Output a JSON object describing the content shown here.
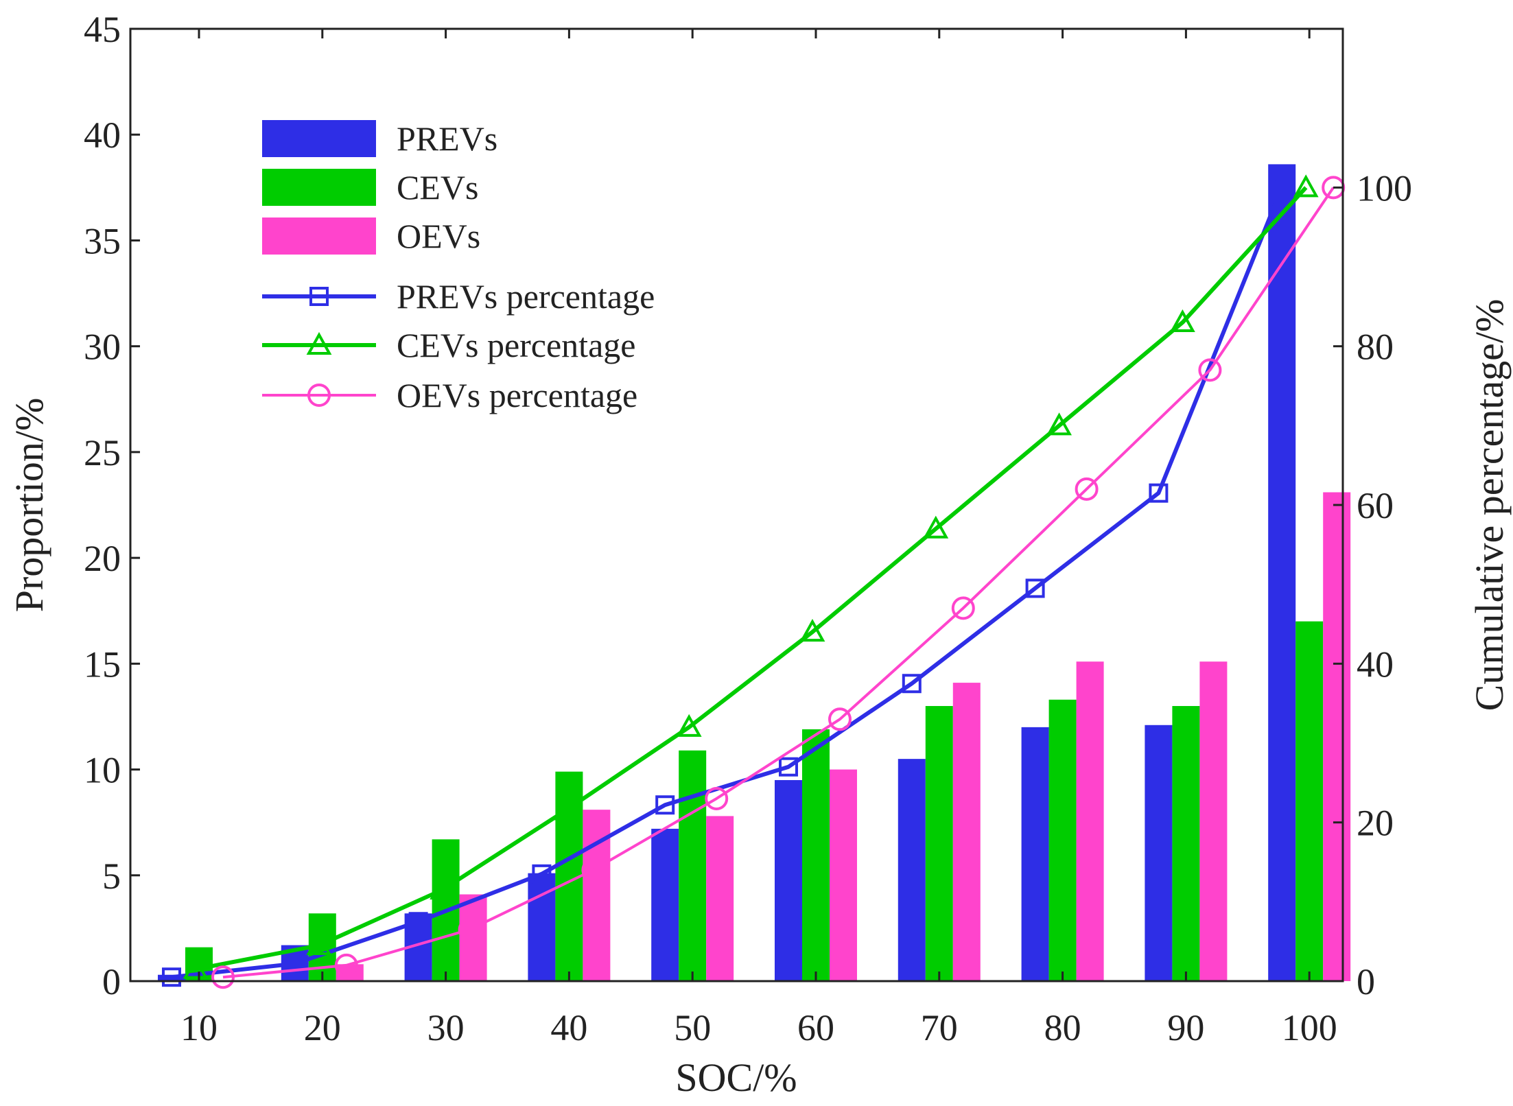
{
  "chart_data": {
    "type": "bar",
    "title": "",
    "xlabel": "SOC/%",
    "ylabel": "Proportion/%",
    "y2label": "Cumulative percentage/%",
    "categories": [
      "10",
      "20",
      "30",
      "40",
      "50",
      "60",
      "70",
      "80",
      "90",
      "100"
    ],
    "ylim": [
      0,
      45
    ],
    "y2lim": [
      0,
      120
    ],
    "yticks": [
      "0",
      "5",
      "10",
      "15",
      "20",
      "25",
      "30",
      "35",
      "40",
      "45"
    ],
    "y2ticks": [
      "0",
      "20",
      "40",
      "60",
      "80",
      "100"
    ],
    "grid": false,
    "legend_position": "top-left",
    "series": [
      {
        "name": "PREVs",
        "kind": "bar",
        "axis": "left",
        "color": "#2e2ee6",
        "values": [
          0.3,
          1.7,
          3.2,
          5.1,
          7.2,
          9.5,
          10.5,
          12.0,
          12.1,
          38.6
        ]
      },
      {
        "name": "CEVs",
        "kind": "bar",
        "axis": "left",
        "color": "#00cc00",
        "values": [
          1.6,
          3.2,
          6.7,
          9.9,
          10.9,
          11.9,
          13.0,
          13.3,
          13.0,
          17.0
        ]
      },
      {
        "name": "OEVs",
        "kind": "bar",
        "axis": "left",
        "color": "#ff44cc",
        "values": [
          0.0,
          0.8,
          4.1,
          8.1,
          7.8,
          10.0,
          14.1,
          15.1,
          15.1,
          23.1
        ]
      },
      {
        "name": "PREVs percentage",
        "kind": "line",
        "axis": "right",
        "marker": "square",
        "color": "#2e2ee6",
        "values": [
          0.5,
          2.2,
          7.5,
          13.5,
          22.2,
          27.0,
          37.5,
          49.5,
          61.5,
          100.0
        ]
      },
      {
        "name": "CEVs percentage",
        "kind": "line",
        "axis": "right",
        "marker": "triangle",
        "color": "#00cc00",
        "values": [
          1.5,
          4.5,
          11.5,
          21.5,
          32.0,
          44.0,
          57.0,
          70.0,
          83.0,
          100.0
        ]
      },
      {
        "name": "OEVs percentage",
        "kind": "line",
        "axis": "right",
        "marker": "circle",
        "color": "#ff44cc",
        "values": [
          0.5,
          2.0,
          6.5,
          14.0,
          23.0,
          33.0,
          47.0,
          62.0,
          77.0,
          100.0
        ]
      }
    ]
  }
}
